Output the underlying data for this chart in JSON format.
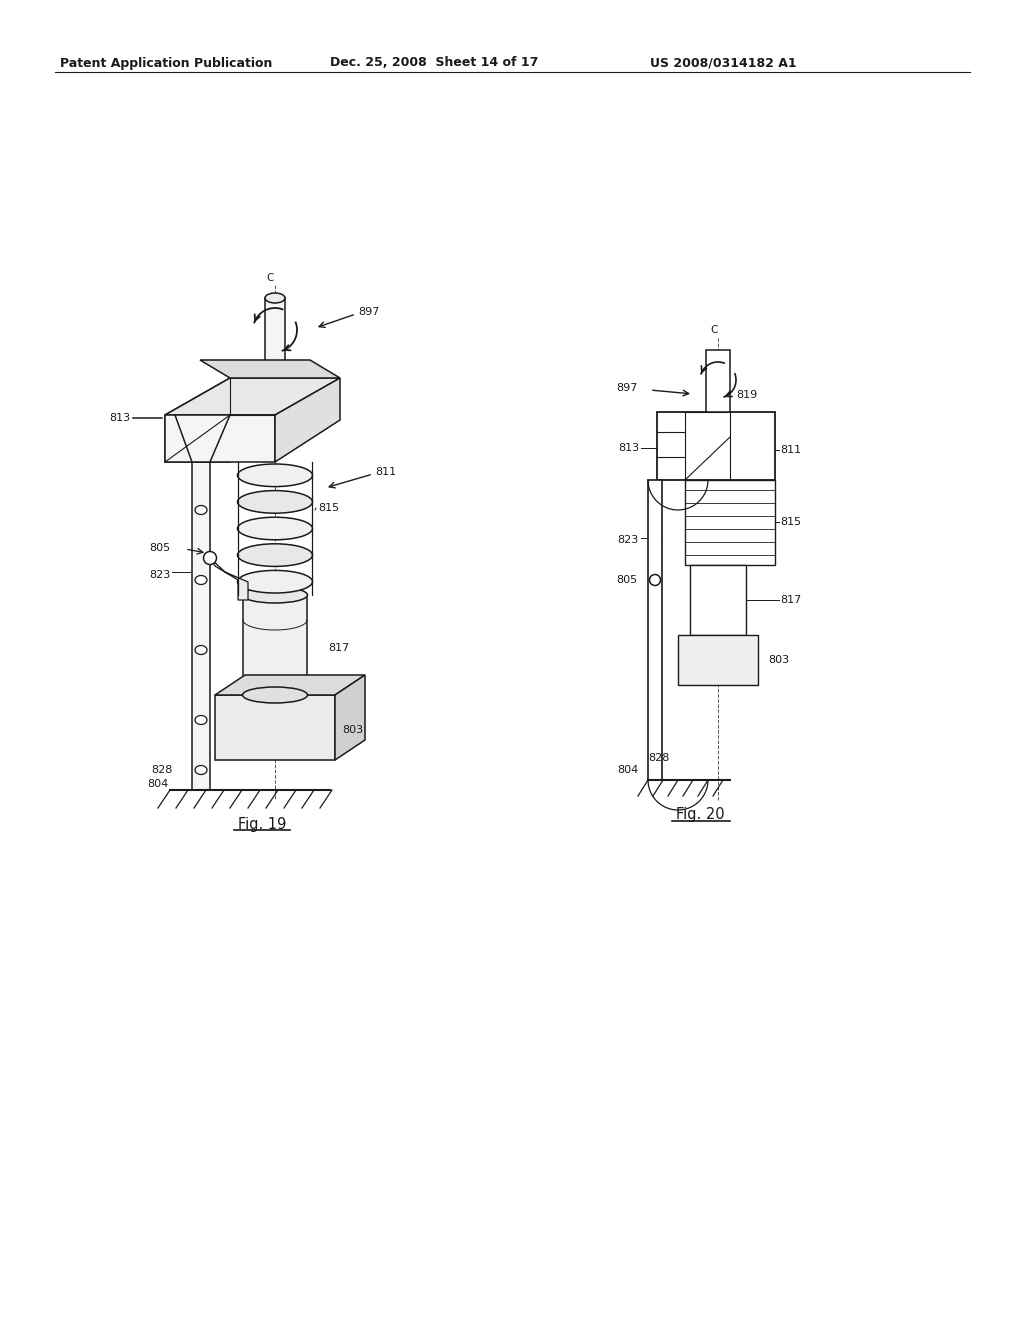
{
  "title_left": "Patent Application Publication",
  "title_mid": "Dec. 25, 2008  Sheet 14 of 17",
  "title_right": "US 2008/0314182 A1",
  "fig19_label": "Fig. 19",
  "fig20_label": "Fig. 20",
  "background": "#ffffff",
  "line_color": "#1a1a1a",
  "label_fontsize": 8.0,
  "header_fontsize": 9.0,
  "fig_label_fontsize": 10.5
}
